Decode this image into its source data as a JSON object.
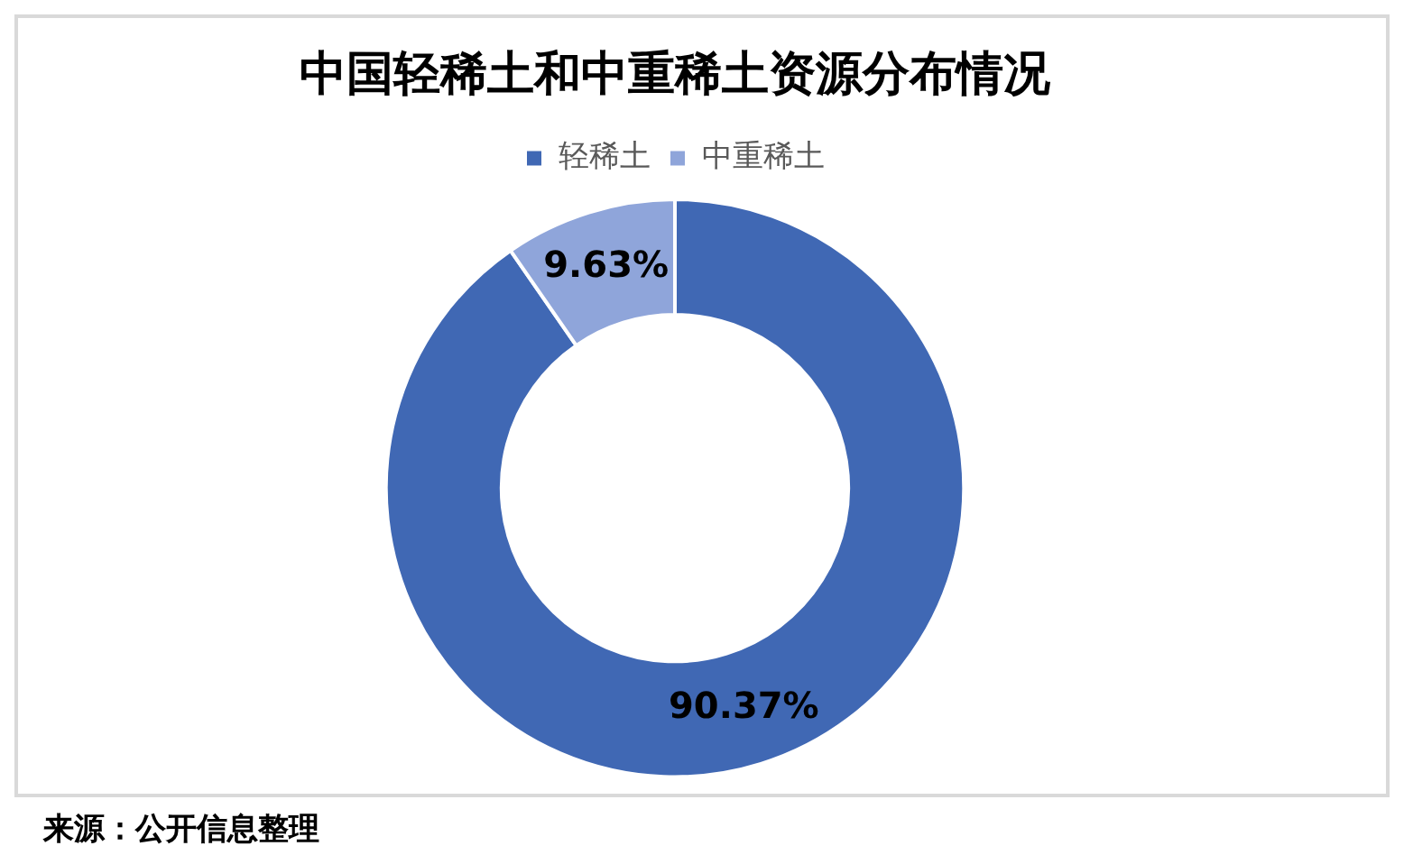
{
  "chart_data": {
    "type": "donut",
    "title": "中国轻稀土和中重稀土资源分布情况",
    "categories": [
      "轻稀土",
      "中重稀土"
    ],
    "values": [
      90.37,
      9.63
    ],
    "colors": [
      "#4068b4",
      "#8fa5da"
    ],
    "value_labels": [
      "90.37%",
      "9.63%"
    ],
    "legend": "top",
    "annotations": [
      "来源：公开信息整理"
    ]
  }
}
